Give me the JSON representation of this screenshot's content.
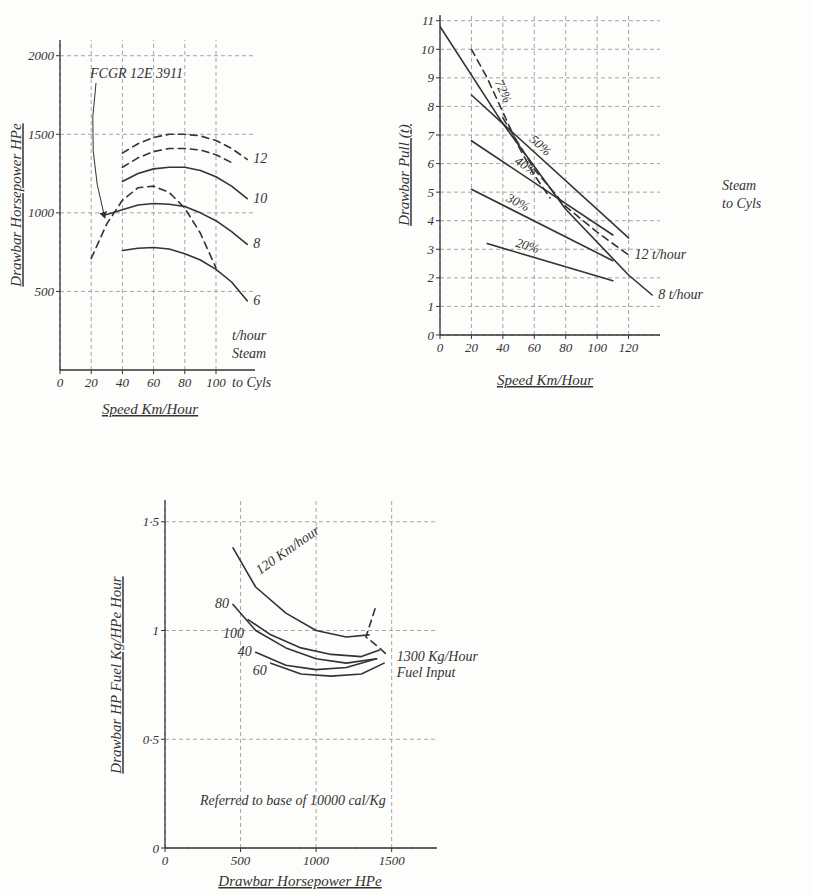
{
  "chart_data": [
    {
      "type": "line",
      "x_label": "Speed Km/Hour",
      "y_label": "Drawbar Horsepower HPe",
      "xlim": [
        0,
        125
      ],
      "ylim": [
        0,
        2100
      ],
      "xticks": [
        0,
        20,
        40,
        60,
        80,
        100
      ],
      "yticks": [
        500,
        1000,
        1500,
        2000
      ],
      "grid": true,
      "color": "#333333",
      "series": [
        {
          "name": "12",
          "line_style": "dashed",
          "x": [
            40,
            50,
            60,
            70,
            80,
            90,
            100,
            110,
            120
          ],
          "values": [
            1380,
            1440,
            1480,
            1500,
            1500,
            1490,
            1460,
            1410,
            1340
          ]
        },
        {
          "line_style": "dashed",
          "x": [
            40,
            50,
            60,
            70,
            80,
            90,
            100,
            110
          ],
          "values": [
            1290,
            1350,
            1390,
            1410,
            1410,
            1400,
            1370,
            1320
          ]
        },
        {
          "name": "10",
          "line_style": "solid",
          "x": [
            40,
            50,
            60,
            70,
            80,
            90,
            100,
            110,
            120
          ],
          "values": [
            1200,
            1250,
            1280,
            1290,
            1290,
            1270,
            1230,
            1170,
            1090
          ]
        },
        {
          "name": "FCGR 12E 3911",
          "line_style": "dashed",
          "x": [
            20,
            30,
            40,
            50,
            60,
            70,
            80,
            90,
            100
          ],
          "values": [
            710,
            930,
            1080,
            1160,
            1170,
            1130,
            1030,
            870,
            650
          ]
        },
        {
          "name": "8",
          "line_style": "solid",
          "x": [
            30,
            40,
            50,
            60,
            70,
            80,
            90,
            100,
            110,
            120
          ],
          "values": [
            990,
            1020,
            1050,
            1060,
            1055,
            1040,
            1000,
            950,
            880,
            800
          ]
        },
        {
          "name": "6",
          "line_style": "solid",
          "x": [
            40,
            50,
            60,
            70,
            80,
            90,
            100,
            110,
            120
          ],
          "values": [
            760,
            775,
            780,
            770,
            740,
            700,
            640,
            560,
            440
          ]
        }
      ],
      "annotations": [
        "t/hour",
        "Steam",
        "to Cyls"
      ]
    },
    {
      "type": "line",
      "x_label": "Speed Km/Hour",
      "y_label": "Drawbar Pull (t)",
      "xlim": [
        0,
        140
      ],
      "ylim": [
        0,
        11.2
      ],
      "xticks": [
        0,
        20,
        40,
        60,
        80,
        100,
        120
      ],
      "yticks": [
        0,
        1,
        2,
        3,
        4,
        5,
        6,
        7,
        8,
        9,
        10,
        11
      ],
      "grid": true,
      "color": "#333333",
      "series": [
        {
          "name": "72%",
          "line_style": "dashed",
          "x": [
            20,
            30,
            40,
            50,
            60,
            70
          ],
          "values": [
            10.0,
            9.0,
            7.8,
            6.6,
            5.6,
            4.8
          ]
        },
        {
          "name": "50%",
          "line_style": "solid",
          "x": [
            20,
            120
          ],
          "values": [
            8.4,
            3.4
          ]
        },
        {
          "name": "40%",
          "line_style": "solid",
          "x": [
            20,
            110
          ],
          "values": [
            6.8,
            3.5
          ]
        },
        {
          "name": "30%",
          "line_style": "solid",
          "x": [
            20,
            110
          ],
          "values": [
            5.1,
            2.6
          ]
        },
        {
          "name": "20%",
          "line_style": "solid",
          "x": [
            30,
            110
          ],
          "values": [
            3.2,
            1.9
          ]
        },
        {
          "name": "12 t/hour",
          "line_style": "dashed",
          "x": [
            40,
            60,
            80,
            100,
            120
          ],
          "values": [
            7.6,
            5.8,
            4.5,
            3.6,
            2.8
          ]
        },
        {
          "name": "8 t/hour",
          "line_style": "solid",
          "x": [
            0,
            40,
            80,
            120,
            135
          ],
          "values": [
            10.8,
            7.4,
            4.4,
            2.1,
            1.4
          ]
        }
      ],
      "annotations": [
        "Steam",
        "to Cyls"
      ]
    },
    {
      "type": "line",
      "x_label": "Drawbar Horsepower HPe",
      "y_label": "Drawbar HP Fuel Kg/HPe Hour",
      "xlim": [
        0,
        1800
      ],
      "ylim": [
        0,
        1.6
      ],
      "xticks": [
        0,
        500,
        1000,
        1500
      ],
      "yticks": [
        0,
        {
          "value": 0.5,
          "label": "0·5"
        },
        1,
        {
          "value": 1.5,
          "label": "1·5"
        }
      ],
      "grid": true,
      "color": "#333333",
      "series": [
        {
          "name": "120 Km/hour",
          "line_style": "solid",
          "x": [
            450,
            600,
            800,
            1000,
            1200,
            1350
          ],
          "values": [
            1.38,
            1.2,
            1.08,
            1.0,
            0.97,
            0.98
          ]
        },
        {
          "name": "100",
          "line_style": "solid",
          "x": [
            550,
            700,
            900,
            1100,
            1300,
            1420
          ],
          "values": [
            1.05,
            0.98,
            0.92,
            0.89,
            0.88,
            0.91
          ]
        },
        {
          "name": "80",
          "line_style": "solid",
          "x": [
            450,
            600,
            800,
            1000,
            1200,
            1400
          ],
          "values": [
            1.12,
            1.0,
            0.92,
            0.87,
            0.85,
            0.87
          ]
        },
        {
          "name": "40",
          "line_style": "solid",
          "x": [
            600,
            800,
            1000,
            1200,
            1400
          ],
          "values": [
            0.9,
            0.84,
            0.82,
            0.83,
            0.87
          ]
        },
        {
          "name": "60",
          "line_style": "solid",
          "x": [
            700,
            900,
            1100,
            1300,
            1450
          ],
          "values": [
            0.85,
            0.8,
            0.79,
            0.8,
            0.85
          ]
        },
        {
          "name": "1300 Kg/Hour Fuel Input",
          "line_style": "dashed",
          "x": [
            1390,
            1330,
            1420,
            1480
          ],
          "values": [
            1.1,
            0.97,
            0.92,
            0.88
          ]
        }
      ],
      "annotations": [
        "Referred to base of 10000 cal/Kg"
      ]
    }
  ]
}
